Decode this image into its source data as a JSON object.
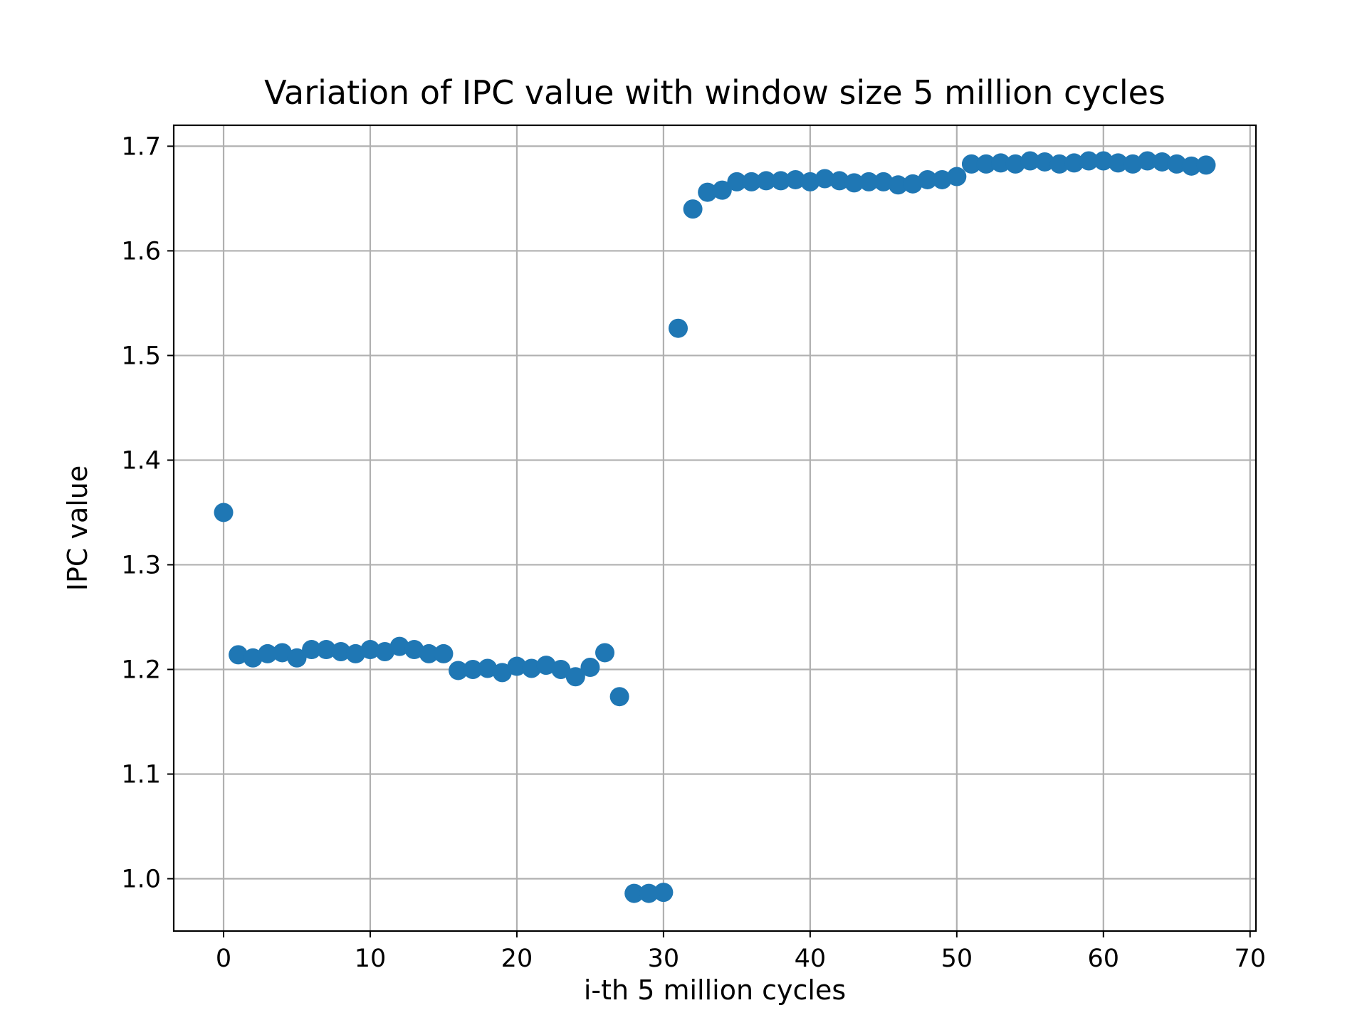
{
  "chart_data": {
    "type": "scatter",
    "title": "Variation of IPC value with window size 5 million cycles",
    "xlabel": "i-th 5 million cycles",
    "ylabel": "IPC value",
    "xlim": [
      -3.4,
      70.4
    ],
    "ylim": [
      0.95,
      1.72
    ],
    "xticks": [
      0,
      10,
      20,
      30,
      40,
      50,
      60,
      70
    ],
    "yticks": [
      1.0,
      1.1,
      1.2,
      1.3,
      1.4,
      1.5,
      1.6,
      1.7
    ],
    "xtick_labels": [
      "0",
      "10",
      "20",
      "30",
      "40",
      "50",
      "60",
      "70"
    ],
    "ytick_labels": [
      "1.0",
      "1.1",
      "1.2",
      "1.3",
      "1.4",
      "1.5",
      "1.6",
      "1.7"
    ],
    "grid": true,
    "legend": null,
    "marker_color": "#1f77b4",
    "series": [
      {
        "x": [
          0,
          1,
          2,
          3,
          4,
          5,
          6,
          7,
          8,
          9,
          10,
          11,
          12,
          13,
          14,
          15,
          16,
          17,
          18,
          19,
          20,
          21,
          22,
          23,
          24,
          25,
          26,
          27,
          28,
          29,
          30,
          31,
          32,
          33,
          34,
          35,
          36,
          37,
          38,
          39,
          40,
          41,
          42,
          43,
          44,
          45,
          46,
          47,
          48,
          49,
          50,
          51,
          52,
          53,
          54,
          55,
          56,
          57,
          58,
          59,
          60,
          61,
          62,
          63,
          64,
          65,
          66,
          67
        ],
        "y": [
          1.35,
          1.214,
          1.211,
          1.215,
          1.216,
          1.211,
          1.219,
          1.219,
          1.217,
          1.215,
          1.219,
          1.217,
          1.222,
          1.219,
          1.215,
          1.215,
          1.199,
          1.2,
          1.201,
          1.197,
          1.203,
          1.201,
          1.204,
          1.2,
          1.193,
          1.202,
          1.216,
          1.174,
          0.986,
          0.986,
          0.987,
          1.526,
          1.64,
          1.656,
          1.658,
          1.666,
          1.666,
          1.667,
          1.667,
          1.668,
          1.666,
          1.669,
          1.667,
          1.665,
          1.666,
          1.666,
          1.663,
          1.664,
          1.668,
          1.668,
          1.671,
          1.683,
          1.683,
          1.684,
          1.683,
          1.686,
          1.685,
          1.683,
          1.684,
          1.686,
          1.686,
          1.684,
          1.683,
          1.686,
          1.685,
          1.683,
          1.681,
          1.682
        ]
      }
    ]
  }
}
